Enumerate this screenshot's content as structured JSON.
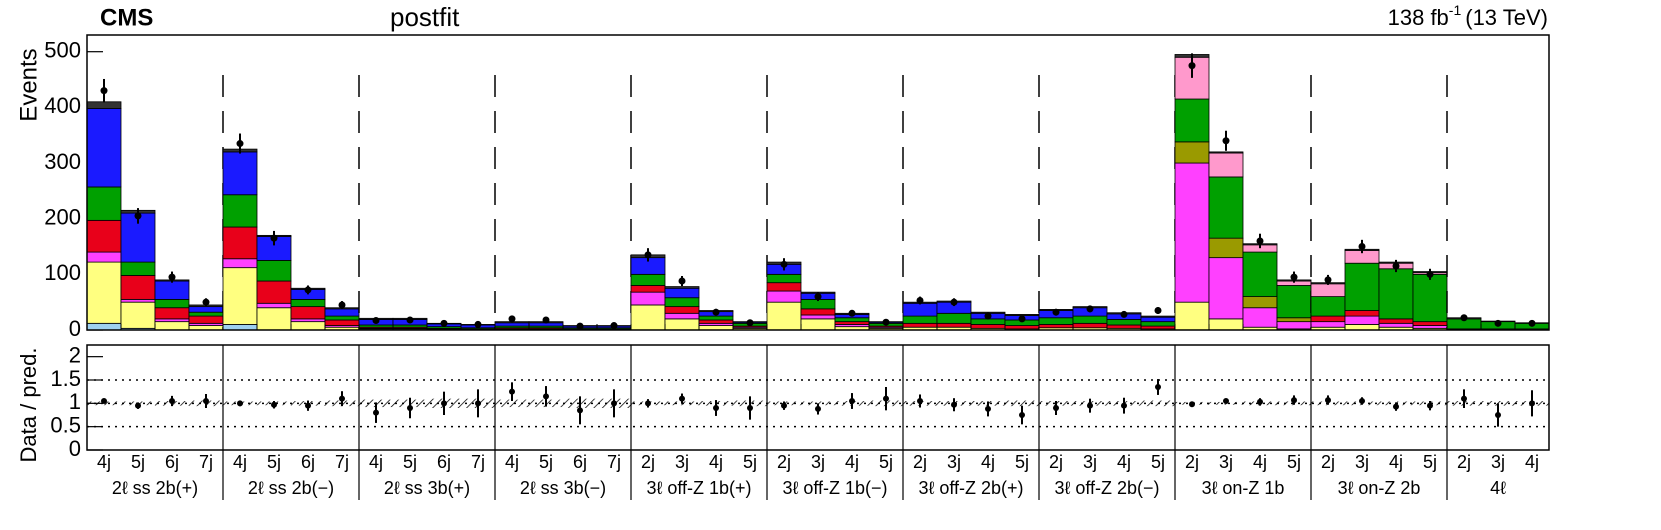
{
  "chart_data": [
    {
      "type": "stacked_histogram",
      "title": "CMS",
      "subtitle": "postfit",
      "lumi": "138 fb",
      "lumi_sup": "-1",
      "energy": "(13 TeV)",
      "ylabel": "Events",
      "ylim": [
        0,
        530
      ],
      "yticks": [
        0,
        100,
        200,
        300,
        400,
        500
      ],
      "groups": [
        {
          "label": "2ℓ ss 2b(+)",
          "categories": [
            "4j",
            "5j",
            "6j",
            "7j"
          ]
        },
        {
          "label": "2ℓ ss 2b(−)",
          "categories": [
            "4j",
            "5j",
            "6j",
            "7j"
          ]
        },
        {
          "label": "2ℓ ss 3b(+)",
          "categories": [
            "4j",
            "5j",
            "6j",
            "7j"
          ]
        },
        {
          "label": "2ℓ ss 3b(−)",
          "categories": [
            "4j",
            "5j",
            "6j",
            "7j"
          ]
        },
        {
          "label": "3ℓ  off-Z 1b(+)",
          "categories": [
            "2j",
            "3j",
            "4j",
            "5j"
          ]
        },
        {
          "label": "3ℓ  off-Z 1b(−)",
          "categories": [
            "2j",
            "3j",
            "4j",
            "5j"
          ]
        },
        {
          "label": "3ℓ  off-Z 2b(+)",
          "categories": [
            "2j",
            "3j",
            "4j",
            "5j"
          ]
        },
        {
          "label": "3ℓ  off-Z 2b(−)",
          "categories": [
            "2j",
            "3j",
            "4j",
            "5j"
          ]
        },
        {
          "label": "3ℓ  on-Z 1b",
          "categories": [
            "2j",
            "3j",
            "4j",
            "5j"
          ]
        },
        {
          "label": "3ℓ  on-Z 2b",
          "categories": [
            "2j",
            "3j",
            "4j",
            "5j"
          ]
        },
        {
          "label": "4ℓ",
          "categories": [
            "2j",
            "3j",
            "4j"
          ]
        }
      ],
      "series": [
        {
          "color": "#9ed0f0",
          "values": [
            12,
            3,
            0,
            0,
            10,
            0,
            0,
            0,
            0,
            0,
            0,
            0,
            0,
            0,
            0,
            0,
            0,
            0,
            0,
            0,
            0,
            0,
            0,
            0,
            0,
            0,
            0,
            0,
            0,
            0,
            0,
            0,
            0,
            0,
            0,
            0,
            0,
            0,
            0,
            0,
            0,
            0,
            0
          ]
        },
        {
          "color": "#ffff80",
          "values": [
            110,
            47,
            15,
            8,
            102,
            40,
            15,
            5,
            2,
            2,
            1,
            1,
            1,
            1,
            1,
            1,
            45,
            20,
            8,
            3,
            50,
            20,
            6,
            3,
            5,
            5,
            3,
            2,
            4,
            4,
            3,
            2,
            50,
            20,
            5,
            2,
            5,
            10,
            5,
            3,
            1,
            1,
            1
          ]
        },
        {
          "color": "#ff40ff",
          "values": [
            18,
            5,
            5,
            4,
            16,
            8,
            5,
            3,
            1,
            1,
            1,
            0,
            1,
            1,
            0,
            0,
            23,
            10,
            4,
            2,
            20,
            7,
            4,
            2,
            0,
            0,
            0,
            0,
            0,
            0,
            0,
            0,
            250,
            110,
            35,
            13,
            10,
            15,
            7,
            5,
            0,
            0,
            0
          ]
        },
        {
          "color": "#e8001a",
          "values": [
            57,
            43,
            20,
            13,
            57,
            40,
            22,
            10,
            2,
            2,
            1,
            1,
            2,
            2,
            1,
            1,
            12,
            12,
            6,
            2,
            15,
            11,
            5,
            2,
            7,
            7,
            7,
            6,
            6,
            8,
            6,
            5,
            0,
            0,
            0,
            0,
            10,
            10,
            8,
            7,
            1,
            1,
            1
          ]
        },
        {
          "color": "#9a9a00",
          "values": [
            0,
            0,
            0,
            0,
            0,
            0,
            0,
            0,
            0,
            0,
            0,
            0,
            0,
            0,
            0,
            0,
            0,
            0,
            0,
            0,
            0,
            0,
            0,
            0,
            0,
            0,
            0,
            0,
            0,
            0,
            0,
            0,
            38,
            35,
            20,
            7,
            0,
            0,
            0,
            0,
            0,
            0,
            0
          ]
        },
        {
          "color": "#00a000",
          "values": [
            60,
            24,
            15,
            7,
            58,
            37,
            13,
            7,
            4,
            4,
            3,
            2,
            3,
            3,
            2,
            2,
            20,
            16,
            7,
            5,
            15,
            17,
            7,
            5,
            13,
            18,
            10,
            10,
            12,
            13,
            10,
            8,
            77,
            110,
            80,
            58,
            35,
            85,
            90,
            85,
            18,
            13,
            10
          ]
        },
        {
          "color": "#1a1aff",
          "values": [
            141,
            88,
            33,
            10,
            77,
            43,
            18,
            13,
            10,
            10,
            5,
            5,
            6,
            6,
            3,
            3,
            30,
            17,
            8,
            2,
            18,
            11,
            6,
            2,
            23,
            20,
            10,
            8,
            13,
            15,
            10,
            8,
            0,
            0,
            0,
            0,
            0,
            0,
            0,
            0,
            0,
            0,
            0
          ]
        },
        {
          "color": "#ff99cc",
          "values": [
            0,
            0,
            0,
            0,
            0,
            0,
            0,
            0,
            0,
            0,
            0,
            0,
            0,
            0,
            0,
            0,
            0,
            0,
            0,
            0,
            0,
            0,
            0,
            0,
            0,
            0,
            0,
            0,
            0,
            0,
            0,
            0,
            75,
            43,
            13,
            8,
            23,
            23,
            10,
            3,
            0,
            0,
            0
          ]
        },
        {
          "color": "#333333",
          "values": [
            12,
            5,
            2,
            3,
            5,
            2,
            2,
            2,
            2,
            2,
            1,
            1,
            2,
            2,
            1,
            1,
            5,
            3,
            2,
            1,
            4,
            2,
            2,
            1,
            2,
            2,
            2,
            2,
            2,
            2,
            2,
            2,
            5,
            2,
            2,
            2,
            2,
            2,
            2,
            2,
            2,
            1,
            1
          ]
        }
      ],
      "data": {
        "color": "#000000",
        "values": [
          430,
          205,
          95,
          50,
          335,
          165,
          72,
          45,
          17,
          18,
          12,
          10,
          20,
          18,
          7,
          8,
          135,
          88,
          32,
          13,
          118,
          60,
          30,
          14,
          53,
          50,
          25,
          20,
          32,
          38,
          28,
          35,
          475,
          340,
          160,
          95,
          90,
          150,
          115,
          100,
          22,
          12,
          12
        ],
        "errors": [
          21,
          14,
          10,
          7,
          18,
          13,
          8,
          7,
          4,
          4,
          3,
          3,
          4,
          4,
          3,
          3,
          12,
          9,
          6,
          4,
          11,
          8,
          5,
          4,
          7,
          7,
          5,
          4,
          6,
          6,
          5,
          6,
          22,
          18,
          13,
          10,
          9,
          12,
          11,
          10,
          5,
          3,
          3
        ]
      }
    },
    {
      "type": "ratio",
      "ylabel": "Data / pred.",
      "ylim": [
        0,
        2.25
      ],
      "yticks": [
        0,
        0.5,
        1,
        1.5,
        2
      ],
      "values": [
        1.05,
        0.95,
        1.05,
        1.05,
        1.0,
        0.97,
        0.95,
        1.1,
        0.8,
        0.9,
        1.0,
        1.0,
        1.25,
        1.15,
        0.85,
        1.0,
        1.0,
        1.1,
        0.9,
        0.9,
        0.95,
        0.88,
        1.05,
        1.1,
        1.05,
        0.97,
        0.88,
        0.75,
        0.9,
        0.95,
        0.95,
        1.35,
        0.98,
        1.05,
        1.03,
        1.07,
        1.07,
        1.05,
        0.93,
        0.95,
        1.1,
        0.75,
        1.0
      ],
      "errors": [
        0.05,
        0.07,
        0.11,
        0.15,
        0.06,
        0.08,
        0.11,
        0.16,
        0.22,
        0.22,
        0.25,
        0.3,
        0.2,
        0.22,
        0.3,
        0.3,
        0.09,
        0.11,
        0.17,
        0.25,
        0.09,
        0.12,
        0.17,
        0.25,
        0.14,
        0.14,
        0.16,
        0.2,
        0.15,
        0.15,
        0.17,
        0.17,
        0.04,
        0.05,
        0.08,
        0.1,
        0.1,
        0.08,
        0.09,
        0.1,
        0.2,
        0.25,
        0.28
      ],
      "band": [
        [
          0.96,
          1.04
        ],
        [
          0.96,
          1.04
        ],
        [
          0.95,
          1.05
        ],
        [
          0.94,
          1.06
        ],
        [
          0.96,
          1.04
        ],
        [
          0.96,
          1.04
        ],
        [
          0.95,
          1.05
        ],
        [
          0.94,
          1.06
        ],
        [
          0.92,
          1.08
        ],
        [
          0.92,
          1.08
        ],
        [
          0.9,
          1.1
        ],
        [
          0.9,
          1.1
        ],
        [
          0.92,
          1.08
        ],
        [
          0.92,
          1.08
        ],
        [
          0.9,
          1.1
        ],
        [
          0.9,
          1.1
        ],
        [
          0.96,
          1.04
        ],
        [
          0.96,
          1.04
        ],
        [
          0.95,
          1.05
        ],
        [
          0.94,
          1.06
        ],
        [
          0.96,
          1.04
        ],
        [
          0.96,
          1.04
        ],
        [
          0.95,
          1.05
        ],
        [
          0.94,
          1.06
        ],
        [
          0.95,
          1.05
        ],
        [
          0.95,
          1.05
        ],
        [
          0.95,
          1.05
        ],
        [
          0.94,
          1.06
        ],
        [
          0.95,
          1.05
        ],
        [
          0.95,
          1.05
        ],
        [
          0.95,
          1.05
        ],
        [
          0.94,
          1.06
        ],
        [
          0.97,
          1.03
        ],
        [
          0.97,
          1.03
        ],
        [
          0.96,
          1.04
        ],
        [
          0.96,
          1.04
        ],
        [
          0.96,
          1.04
        ],
        [
          0.96,
          1.04
        ],
        [
          0.96,
          1.04
        ],
        [
          0.96,
          1.04
        ],
        [
          0.95,
          1.05
        ],
        [
          0.95,
          1.05
        ],
        [
          0.95,
          1.05
        ]
      ]
    }
  ]
}
